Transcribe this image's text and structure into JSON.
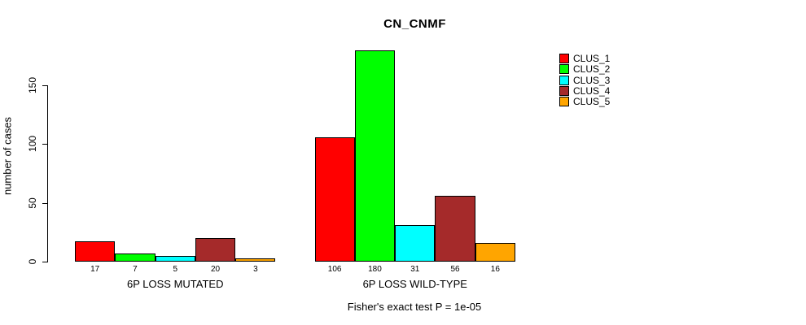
{
  "chart_data": {
    "type": "bar",
    "title": "CN_CNMF",
    "ylabel": "number of cases",
    "xlabel": "",
    "categories": [
      "6P LOSS MUTATED",
      "6P LOSS WILD-TYPE"
    ],
    "series": [
      {
        "name": "CLUS_1",
        "color": "#FF0000",
        "values": [
          17,
          106
        ]
      },
      {
        "name": "CLUS_2",
        "color": "#00FF00",
        "values": [
          7,
          180
        ]
      },
      {
        "name": "CLUS_3",
        "color": "#00FFFF",
        "values": [
          5,
          31
        ]
      },
      {
        "name": "CLUS_4",
        "color": "#A52A2A",
        "values": [
          20,
          56
        ]
      },
      {
        "name": "CLUS_5",
        "color": "#FFA500",
        "values": [
          3,
          16
        ]
      }
    ],
    "bar_value_labels": [
      [
        "17",
        "7",
        "5",
        "20",
        "3"
      ],
      [
        "106",
        "180",
        "31",
        "56",
        "16"
      ]
    ],
    "yticks": [
      0,
      50,
      100,
      150
    ],
    "ylim": [
      0,
      182
    ],
    "grid": false,
    "legend_position": "right-outside",
    "legend_box": false,
    "annotation": "Fisher's exact test P = 1e-05"
  }
}
